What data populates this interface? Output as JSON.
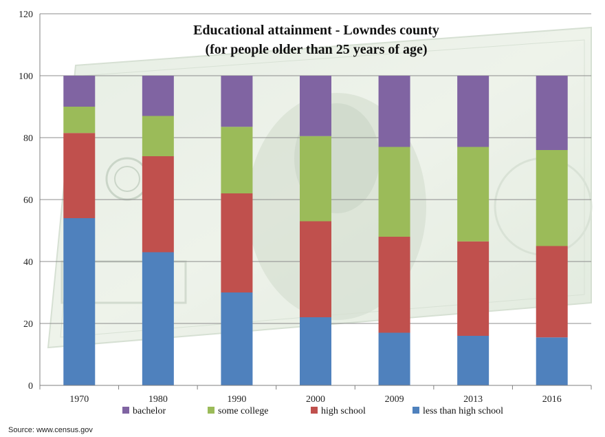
{
  "chart_data": {
    "type": "bar",
    "stacked": true,
    "title_lines": [
      "Educational attainment  - Lowndes county",
      "(for people older than 25 years of age)"
    ],
    "categories": [
      "1970",
      "1980",
      "1990",
      "2000",
      "2009",
      "2013",
      "2016"
    ],
    "series": [
      {
        "name": "less than high school",
        "color": "#4f81bd",
        "values": [
          54,
          43,
          30,
          22,
          17,
          16,
          15.5
        ]
      },
      {
        "name": "high school",
        "color": "#c0504d",
        "values": [
          27.5,
          31,
          32,
          31,
          31,
          30.5,
          29.5
        ]
      },
      {
        "name": "some college",
        "color": "#9bbb59",
        "values": [
          8.5,
          13,
          21.5,
          27.5,
          29,
          30.5,
          31
        ]
      },
      {
        "name": "bachelor",
        "color": "#8064a2",
        "values": [
          10,
          13,
          16.5,
          19.5,
          23,
          23,
          24
        ]
      }
    ],
    "legend_order": [
      "bachelor",
      "some college",
      "high school",
      "less than high school"
    ],
    "ylim": [
      0,
      120
    ],
    "yticks": [
      0,
      20,
      40,
      60,
      80,
      100,
      120
    ],
    "grid": true,
    "legend_position": "bottom",
    "background_image": "hundred-dollar-bill"
  },
  "source": "Source: www.census.gov"
}
